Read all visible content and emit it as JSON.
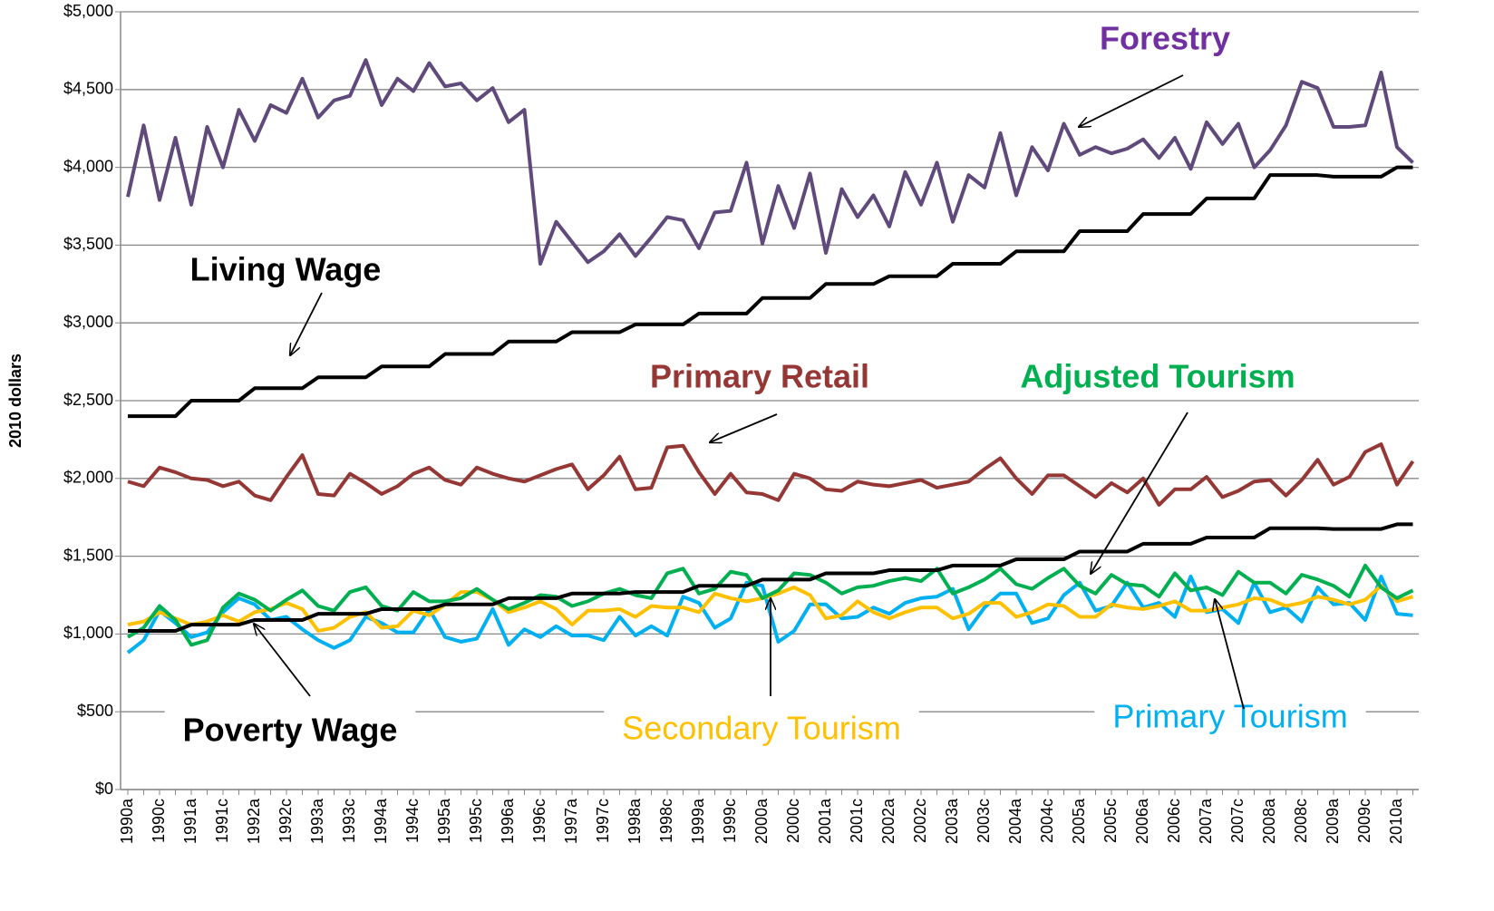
{
  "chart_data": {
    "type": "line",
    "y_label": "2010 dollars",
    "categories": [
      "1990a",
      null,
      "1990c",
      null,
      "1991a",
      null,
      "1991c",
      null,
      "1992a",
      null,
      "1992c",
      null,
      "1993a",
      null,
      "1993c",
      null,
      "1994a",
      null,
      "1994c",
      null,
      "1995a",
      null,
      "1995c",
      null,
      "1996a",
      null,
      "1996c",
      null,
      "1997a",
      null,
      "1997c",
      null,
      "1998a",
      null,
      "1998c",
      null,
      "1999a",
      null,
      "1999c",
      null,
      "2000a",
      null,
      "2000c",
      null,
      "2001a",
      null,
      "2001c",
      null,
      "2002a",
      null,
      "2002c",
      null,
      "2003a",
      null,
      "2003c",
      null,
      "2004a",
      null,
      "2004c",
      null,
      "2005a",
      null,
      "2005c",
      null,
      "2006a",
      null,
      "2006c",
      null,
      "2007a",
      null,
      "2007c",
      null,
      "2008a",
      null,
      "2008c",
      null,
      "2009a",
      null,
      "2009c",
      null,
      "2010a",
      null
    ],
    "ylim": [
      0,
      5000
    ],
    "yticks": [
      {
        "value": 0,
        "label": "$0"
      },
      {
        "value": 500,
        "label": "$500"
      },
      {
        "value": 1000,
        "label": "$1,000"
      },
      {
        "value": 1500,
        "label": "$1,500"
      },
      {
        "value": 2000,
        "label": "$2,000"
      },
      {
        "value": 2500,
        "label": "$2,500"
      },
      {
        "value": 3000,
        "label": "$3,000"
      },
      {
        "value": 3500,
        "label": "$3,500"
      },
      {
        "value": 4000,
        "label": "$4,000"
      },
      {
        "value": 4500,
        "label": "$4,500"
      },
      {
        "value": 5000,
        "label": "$5,000"
      }
    ],
    "grid": true,
    "series": [
      {
        "name": "Forestry",
        "color": "#604a7b",
        "label_color": "#7030a0",
        "values": [
          3810,
          4270,
          3790,
          4190,
          3760,
          4260,
          4000,
          4370,
          4170,
          4400,
          4350,
          4570,
          4320,
          4430,
          4460,
          4690,
          4400,
          4570,
          4490,
          4670,
          4520,
          4540,
          4430,
          4510,
          4290,
          4370,
          3380,
          3650,
          3520,
          3390,
          3460,
          3570,
          3430,
          3550,
          3680,
          3660,
          3480,
          3710,
          3720,
          4030,
          3510,
          3880,
          3610,
          3960,
          3450,
          3860,
          3680,
          3820,
          3620,
          3970,
          3760,
          4030,
          3650,
          3950,
          3870,
          4220,
          3820,
          4130,
          3980,
          4280,
          4080,
          4130,
          4090,
          4120,
          4180,
          4060,
          4190,
          3990,
          4290,
          4150,
          4280,
          4000,
          4110,
          4270,
          4550,
          4510,
          4260,
          4260,
          4270,
          4610,
          4130,
          4030
        ]
      },
      {
        "name": "Living Wage",
        "color": "#000000",
        "label_color": "#000000",
        "values": [
          2400,
          2400,
          2400,
          2400,
          2500,
          2500,
          2500,
          2500,
          2580,
          2580,
          2580,
          2580,
          2650,
          2650,
          2650,
          2650,
          2720,
          2720,
          2720,
          2720,
          2800,
          2800,
          2800,
          2800,
          2880,
          2880,
          2880,
          2880,
          2940,
          2940,
          2940,
          2940,
          2990,
          2990,
          2990,
          2990,
          3060,
          3060,
          3060,
          3060,
          3160,
          3160,
          3160,
          3160,
          3250,
          3250,
          3250,
          3250,
          3300,
          3300,
          3300,
          3300,
          3380,
          3380,
          3380,
          3380,
          3460,
          3460,
          3460,
          3460,
          3590,
          3590,
          3590,
          3590,
          3700,
          3700,
          3700,
          3700,
          3800,
          3800,
          3800,
          3800,
          3950,
          3950,
          3950,
          3950,
          3940,
          3940,
          3940,
          3940,
          4000,
          4000
        ]
      },
      {
        "name": "Primary Retail",
        "color": "#953735",
        "label_color": "#953735",
        "values": [
          1980,
          1950,
          2070,
          2040,
          2000,
          1990,
          1950,
          1980,
          1890,
          1860,
          2010,
          2150,
          1900,
          1890,
          2030,
          1970,
          1900,
          1950,
          2030,
          2070,
          1990,
          1960,
          2070,
          2030,
          2000,
          1980,
          2020,
          2060,
          2090,
          1930,
          2020,
          2140,
          1930,
          1940,
          2200,
          2210,
          2040,
          1900,
          2030,
          1910,
          1900,
          1860,
          2030,
          2000,
          1930,
          1920,
          1980,
          1960,
          1950,
          1970,
          1990,
          1940,
          1960,
          1980,
          2060,
          2130,
          2000,
          1900,
          2020,
          2020,
          1950,
          1880,
          1970,
          1910,
          2000,
          1830,
          1930,
          1930,
          2010,
          1880,
          1920,
          1980,
          1990,
          1890,
          1990,
          2120,
          1960,
          2010,
          2170,
          2220,
          1960,
          2110
        ]
      },
      {
        "name": "Adjusted Tourism",
        "color": "#00b050",
        "label_color": "#00b050",
        "values": [
          980,
          1040,
          1180,
          1090,
          930,
          960,
          1170,
          1260,
          1220,
          1150,
          1220,
          1280,
          1180,
          1150,
          1270,
          1300,
          1180,
          1150,
          1270,
          1210,
          1210,
          1230,
          1290,
          1220,
          1160,
          1200,
          1250,
          1240,
          1180,
          1210,
          1260,
          1290,
          1250,
          1230,
          1390,
          1420,
          1260,
          1290,
          1400,
          1380,
          1230,
          1280,
          1390,
          1380,
          1330,
          1260,
          1300,
          1310,
          1340,
          1360,
          1340,
          1420,
          1260,
          1300,
          1350,
          1420,
          1320,
          1290,
          1360,
          1420,
          1310,
          1260,
          1380,
          1320,
          1310,
          1240,
          1390,
          1280,
          1300,
          1250,
          1400,
          1330,
          1330,
          1260,
          1380,
          1350,
          1310,
          1240,
          1440,
          1300,
          1230,
          1280
        ]
      },
      {
        "name": "Poverty Wage",
        "color": "#000000",
        "label_color": "#000000",
        "values": [
          1020,
          1020,
          1020,
          1020,
          1060,
          1060,
          1060,
          1060,
          1090,
          1090,
          1090,
          1090,
          1130,
          1130,
          1130,
          1130,
          1160,
          1160,
          1160,
          1160,
          1190,
          1190,
          1190,
          1190,
          1230,
          1230,
          1230,
          1230,
          1260,
          1260,
          1260,
          1260,
          1270,
          1270,
          1270,
          1270,
          1310,
          1310,
          1310,
          1310,
          1350,
          1350,
          1350,
          1350,
          1390,
          1390,
          1390,
          1390,
          1410,
          1410,
          1410,
          1410,
          1440,
          1440,
          1440,
          1440,
          1480,
          1480,
          1480,
          1480,
          1530,
          1530,
          1530,
          1530,
          1580,
          1580,
          1580,
          1580,
          1620,
          1620,
          1620,
          1620,
          1680,
          1680,
          1680,
          1680,
          1675,
          1675,
          1675,
          1675,
          1705,
          1705
        ]
      },
      {
        "name": "Secondary Tourism",
        "color": "#ffc000",
        "label_color": "#ffc000",
        "values": [
          1060,
          1080,
          1140,
          1100,
          1060,
          1080,
          1120,
          1080,
          1140,
          1160,
          1200,
          1160,
          1020,
          1040,
          1110,
          1140,
          1040,
          1050,
          1150,
          1120,
          1190,
          1270,
          1270,
          1220,
          1140,
          1170,
          1210,
          1160,
          1060,
          1150,
          1150,
          1160,
          1110,
          1180,
          1170,
          1170,
          1140,
          1260,
          1230,
          1210,
          1230,
          1260,
          1300,
          1250,
          1100,
          1120,
          1210,
          1140,
          1100,
          1140,
          1170,
          1170,
          1100,
          1130,
          1200,
          1200,
          1110,
          1140,
          1190,
          1180,
          1110,
          1110,
          1190,
          1170,
          1160,
          1180,
          1210,
          1150,
          1150,
          1170,
          1190,
          1230,
          1220,
          1180,
          1200,
          1240,
          1220,
          1190,
          1220,
          1310,
          1210,
          1240
        ]
      },
      {
        "name": "Primary Tourism",
        "color": "#00b0f0",
        "label_color": "#00b0f0",
        "values": [
          880,
          960,
          1150,
          1070,
          980,
          1010,
          1140,
          1230,
          1190,
          1090,
          1110,
          1030,
          960,
          910,
          960,
          1110,
          1070,
          1010,
          1010,
          1160,
          980,
          950,
          970,
          1160,
          930,
          1030,
          980,
          1050,
          990,
          990,
          960,
          1110,
          990,
          1050,
          990,
          1240,
          1200,
          1040,
          1100,
          1330,
          1310,
          950,
          1020,
          1190,
          1190,
          1100,
          1110,
          1170,
          1130,
          1200,
          1230,
          1240,
          1290,
          1030,
          1170,
          1260,
          1260,
          1070,
          1100,
          1250,
          1330,
          1150,
          1180,
          1330,
          1170,
          1200,
          1110,
          1370,
          1140,
          1160,
          1070,
          1330,
          1140,
          1170,
          1080,
          1300,
          1190,
          1200,
          1090,
          1370,
          1130,
          1120
        ]
      }
    ]
  }
}
